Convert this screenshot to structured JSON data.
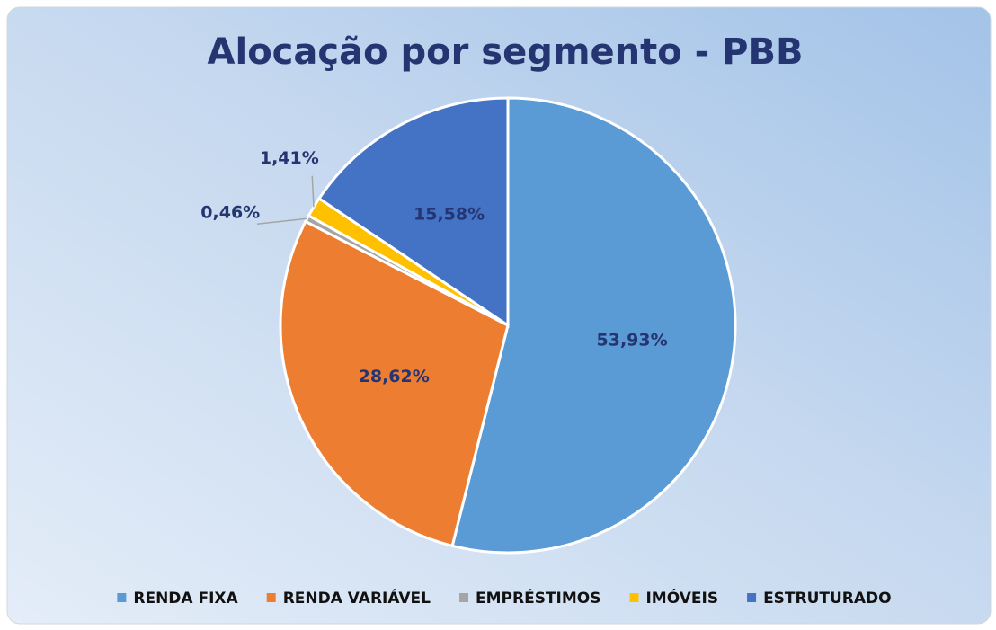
{
  "chart_data": {
    "type": "pie",
    "title": "Alocação por segmento - PBB",
    "categories": [
      "RENDA FIXA",
      "RENDA VARIÁVEL",
      "EMPRÉSTIMOS",
      "IMÓVEIS",
      "ESTRUTURADO"
    ],
    "values": [
      53.93,
      28.62,
      0.46,
      1.41,
      15.58
    ],
    "value_labels": [
      "53,93%",
      "28,62%",
      "0,46%",
      "1,41%",
      "15,58%"
    ],
    "colors": [
      "#5b9bd5",
      "#ed7d31",
      "#a5a5a5",
      "#ffc000",
      "#4472c4"
    ],
    "legend": "bottom"
  }
}
